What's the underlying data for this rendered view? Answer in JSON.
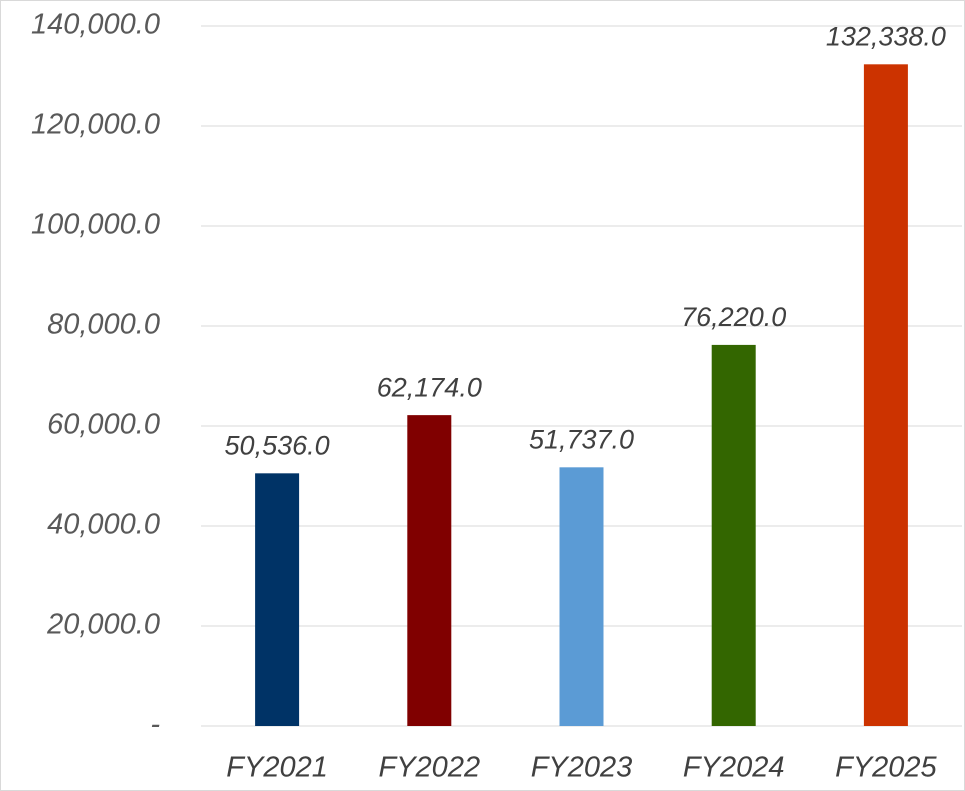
{
  "chart_data": {
    "type": "bar",
    "categories": [
      "FY2021",
      "FY2022",
      "FY2023",
      "FY2024",
      "FY2025"
    ],
    "values": [
      50536,
      62174,
      51737,
      76220,
      132338
    ],
    "value_labels": [
      "50,536.0",
      "62,174.0",
      "51,737.0",
      "76,220.0",
      "132,338.0"
    ],
    "colors": [
      "#003366",
      "#800000",
      "#5b9bd5",
      "#336600",
      "#cc3300"
    ],
    "ylim": [
      0,
      140000
    ],
    "yticks": [
      {
        "value": 0,
        "label": "-"
      },
      {
        "value": 20000,
        "label": "20,000.0"
      },
      {
        "value": 40000,
        "label": "40,000.0"
      },
      {
        "value": 60000,
        "label": "60,000.0"
      },
      {
        "value": 80000,
        "label": "80,000.0"
      },
      {
        "value": 100000,
        "label": "100,000.0"
      },
      {
        "value": 120000,
        "label": "120,000.0"
      },
      {
        "value": 140000,
        "label": "140,000.0"
      }
    ],
    "grid": true
  }
}
